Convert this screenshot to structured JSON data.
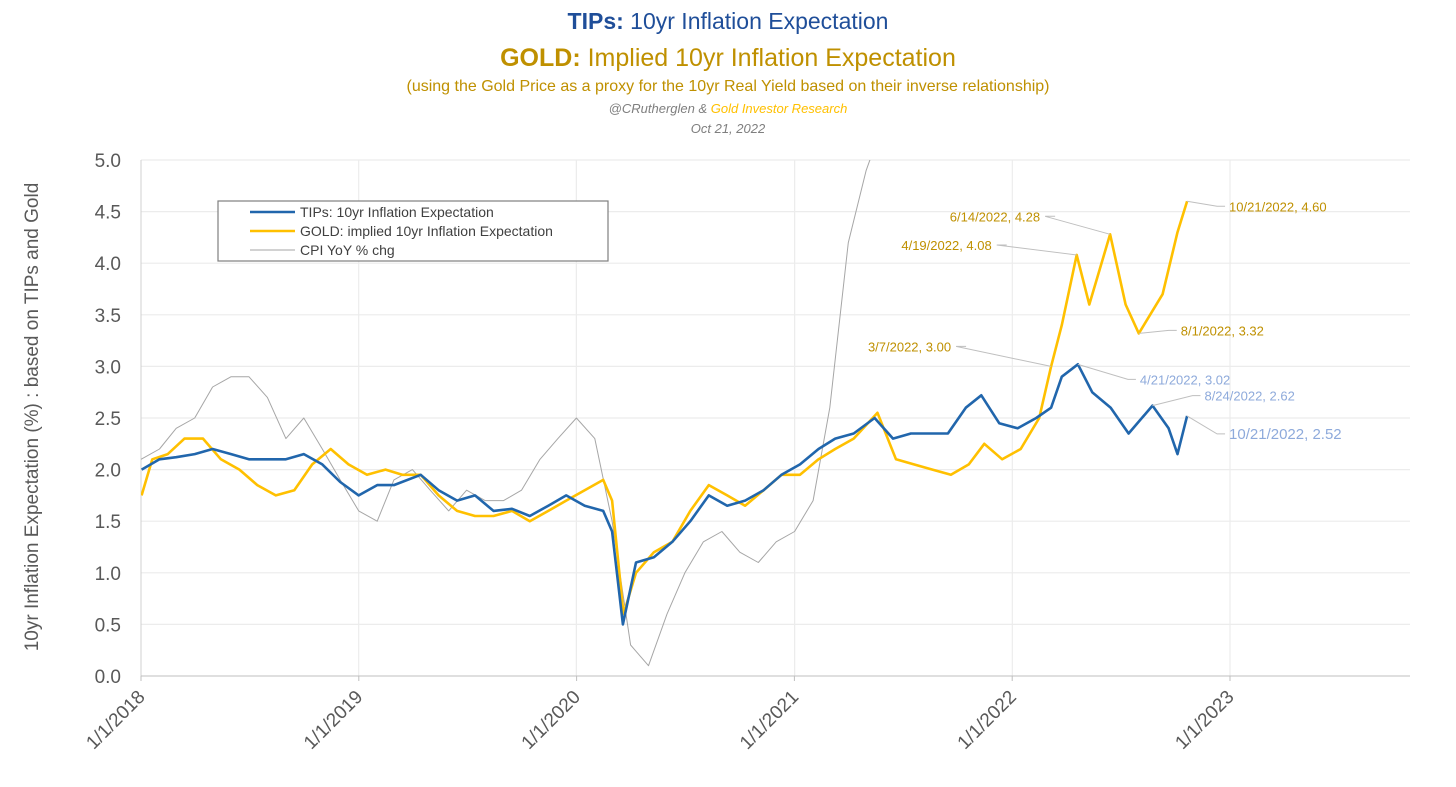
{
  "header": {
    "title1_bold": "TIPs:",
    "title1_rest": " 10yr Inflation Expectation",
    "title2_bold": "GOLD:",
    "title2_rest": " Implied 10yr Inflation Expectation",
    "subtitle": "(using the Gold Price as a proxy for the 10yr Real Yield based on their inverse relationship)",
    "credit_author": "@CRutherglen & ",
    "credit_org": "Gold Investor Research",
    "date": "Oct 21, 2022"
  },
  "colors": {
    "tips": "#2166ac",
    "gold": "#ffc000",
    "cpi": "#a6a6a6",
    "gold_text": "#bf9000",
    "tips_label": "#8eaadb",
    "title_blue": "#1f4e99"
  },
  "chart_data": {
    "type": "line",
    "ylabel": "10yr Inflation Expectation (%) : based on TIPs and Gold",
    "xlabel": "",
    "ylim": [
      0,
      5
    ],
    "yticks": [
      "0.0",
      "0.5",
      "1.0",
      "1.5",
      "2.0",
      "2.5",
      "3.0",
      "3.5",
      "4.0",
      "4.5",
      "5.0"
    ],
    "xlim": [
      "2018-01-01",
      "2023-10-01"
    ],
    "xticks": [
      {
        "date": "2018-01-01",
        "label": "1/1/2018"
      },
      {
        "date": "2019-01-01",
        "label": "1/1/2019"
      },
      {
        "date": "2020-01-01",
        "label": "1/1/2020"
      },
      {
        "date": "2021-01-01",
        "label": "1/1/2021"
      },
      {
        "date": "2022-01-01",
        "label": "1/1/2022"
      },
      {
        "date": "2023-01-01",
        "label": "1/1/2023"
      }
    ],
    "grid": true,
    "legend_position": "top-left",
    "series": [
      {
        "key": "tips",
        "name": "TIPs: 10yr Inflation Expectation",
        "points": [
          [
            "2018-01-02",
            2.0
          ],
          [
            "2018-02-01",
            2.1
          ],
          [
            "2018-03-01",
            2.12
          ],
          [
            "2018-04-01",
            2.15
          ],
          [
            "2018-05-01",
            2.2
          ],
          [
            "2018-06-01",
            2.15
          ],
          [
            "2018-07-01",
            2.1
          ],
          [
            "2018-08-01",
            2.1
          ],
          [
            "2018-09-01",
            2.1
          ],
          [
            "2018-10-01",
            2.15
          ],
          [
            "2018-11-01",
            2.05
          ],
          [
            "2018-12-01",
            1.88
          ],
          [
            "2019-01-01",
            1.75
          ],
          [
            "2019-02-01",
            1.85
          ],
          [
            "2019-03-01",
            1.85
          ],
          [
            "2019-04-15",
            1.95
          ],
          [
            "2019-05-15",
            1.8
          ],
          [
            "2019-06-15",
            1.7
          ],
          [
            "2019-07-15",
            1.75
          ],
          [
            "2019-08-15",
            1.6
          ],
          [
            "2019-09-15",
            1.62
          ],
          [
            "2019-10-15",
            1.55
          ],
          [
            "2019-11-15",
            1.65
          ],
          [
            "2019-12-15",
            1.75
          ],
          [
            "2020-01-15",
            1.65
          ],
          [
            "2020-02-15",
            1.6
          ],
          [
            "2020-03-01",
            1.4
          ],
          [
            "2020-03-19",
            0.5
          ],
          [
            "2020-04-10",
            1.1
          ],
          [
            "2020-05-10",
            1.15
          ],
          [
            "2020-06-10",
            1.3
          ],
          [
            "2020-07-10",
            1.5
          ],
          [
            "2020-08-10",
            1.75
          ],
          [
            "2020-09-10",
            1.65
          ],
          [
            "2020-10-10",
            1.7
          ],
          [
            "2020-11-10",
            1.8
          ],
          [
            "2020-12-10",
            1.95
          ],
          [
            "2021-01-10",
            2.05
          ],
          [
            "2021-02-10",
            2.2
          ],
          [
            "2021-03-10",
            2.3
          ],
          [
            "2021-04-10",
            2.35
          ],
          [
            "2021-05-15",
            2.5
          ],
          [
            "2021-06-15",
            2.3
          ],
          [
            "2021-07-15",
            2.35
          ],
          [
            "2021-08-15",
            2.35
          ],
          [
            "2021-09-15",
            2.35
          ],
          [
            "2021-10-15",
            2.6
          ],
          [
            "2021-11-10",
            2.72
          ],
          [
            "2021-12-10",
            2.45
          ],
          [
            "2022-01-10",
            2.4
          ],
          [
            "2022-02-10",
            2.5
          ],
          [
            "2022-03-07",
            2.6
          ],
          [
            "2022-03-25",
            2.9
          ],
          [
            "2022-04-21",
            3.02
          ],
          [
            "2022-05-15",
            2.75
          ],
          [
            "2022-06-15",
            2.6
          ],
          [
            "2022-07-15",
            2.35
          ],
          [
            "2022-08-24",
            2.62
          ],
          [
            "2022-09-20",
            2.4
          ],
          [
            "2022-10-05",
            2.15
          ],
          [
            "2022-10-21",
            2.52
          ]
        ]
      },
      {
        "key": "gold",
        "name": "GOLD: implied 10yr Inflation Expectation",
        "points": [
          [
            "2018-01-02",
            1.75
          ],
          [
            "2018-01-20",
            2.1
          ],
          [
            "2018-02-15",
            2.15
          ],
          [
            "2018-03-15",
            2.3
          ],
          [
            "2018-04-15",
            2.3
          ],
          [
            "2018-05-15",
            2.1
          ],
          [
            "2018-06-15",
            2.0
          ],
          [
            "2018-07-15",
            1.85
          ],
          [
            "2018-08-15",
            1.75
          ],
          [
            "2018-09-15",
            1.8
          ],
          [
            "2018-10-15",
            2.05
          ],
          [
            "2018-11-15",
            2.2
          ],
          [
            "2018-12-15",
            2.05
          ],
          [
            "2019-01-15",
            1.95
          ],
          [
            "2019-02-15",
            2.0
          ],
          [
            "2019-03-15",
            1.95
          ],
          [
            "2019-04-15",
            1.95
          ],
          [
            "2019-05-15",
            1.75
          ],
          [
            "2019-06-15",
            1.6
          ],
          [
            "2019-07-15",
            1.55
          ],
          [
            "2019-08-15",
            1.55
          ],
          [
            "2019-09-15",
            1.6
          ],
          [
            "2019-10-15",
            1.5
          ],
          [
            "2019-11-15",
            1.6
          ],
          [
            "2019-12-15",
            1.7
          ],
          [
            "2020-01-15",
            1.8
          ],
          [
            "2020-02-15",
            1.9
          ],
          [
            "2020-03-01",
            1.7
          ],
          [
            "2020-03-20",
            0.6
          ],
          [
            "2020-04-10",
            1.0
          ],
          [
            "2020-05-10",
            1.2
          ],
          [
            "2020-06-10",
            1.3
          ],
          [
            "2020-07-10",
            1.6
          ],
          [
            "2020-08-10",
            1.85
          ],
          [
            "2020-09-10",
            1.75
          ],
          [
            "2020-10-10",
            1.65
          ],
          [
            "2020-11-10",
            1.8
          ],
          [
            "2020-12-10",
            1.95
          ],
          [
            "2021-01-10",
            1.95
          ],
          [
            "2021-02-10",
            2.1
          ],
          [
            "2021-03-10",
            2.2
          ],
          [
            "2021-04-10",
            2.3
          ],
          [
            "2021-05-20",
            2.55
          ],
          [
            "2021-06-20",
            2.1
          ],
          [
            "2021-07-20",
            2.05
          ],
          [
            "2021-08-20",
            2.0
          ],
          [
            "2021-09-20",
            1.95
          ],
          [
            "2021-10-20",
            2.05
          ],
          [
            "2021-11-15",
            2.25
          ],
          [
            "2021-12-15",
            2.1
          ],
          [
            "2022-01-15",
            2.2
          ],
          [
            "2022-02-15",
            2.5
          ],
          [
            "2022-03-07",
            3.0
          ],
          [
            "2022-03-25",
            3.4
          ],
          [
            "2022-04-19",
            4.08
          ],
          [
            "2022-05-10",
            3.6
          ],
          [
            "2022-06-14",
            4.28
          ],
          [
            "2022-07-10",
            3.6
          ],
          [
            "2022-08-01",
            3.32
          ],
          [
            "2022-09-10",
            3.7
          ],
          [
            "2022-10-05",
            4.3
          ],
          [
            "2022-10-21",
            4.6
          ]
        ]
      },
      {
        "key": "cpi",
        "name": "CPI YoY % chg",
        "points": [
          [
            "2018-01-01",
            2.1
          ],
          [
            "2018-02-01",
            2.2
          ],
          [
            "2018-03-01",
            2.4
          ],
          [
            "2018-04-01",
            2.5
          ],
          [
            "2018-05-01",
            2.8
          ],
          [
            "2018-06-01",
            2.9
          ],
          [
            "2018-07-01",
            2.9
          ],
          [
            "2018-08-01",
            2.7
          ],
          [
            "2018-09-01",
            2.3
          ],
          [
            "2018-10-01",
            2.5
          ],
          [
            "2018-11-01",
            2.2
          ],
          [
            "2018-12-01",
            1.9
          ],
          [
            "2019-01-01",
            1.6
          ],
          [
            "2019-02-01",
            1.5
          ],
          [
            "2019-03-01",
            1.9
          ],
          [
            "2019-04-01",
            2.0
          ],
          [
            "2019-05-01",
            1.8
          ],
          [
            "2019-06-01",
            1.6
          ],
          [
            "2019-07-01",
            1.8
          ],
          [
            "2019-08-01",
            1.7
          ],
          [
            "2019-09-01",
            1.7
          ],
          [
            "2019-10-01",
            1.8
          ],
          [
            "2019-11-01",
            2.1
          ],
          [
            "2019-12-01",
            2.3
          ],
          [
            "2020-01-01",
            2.5
          ],
          [
            "2020-02-01",
            2.3
          ],
          [
            "2020-03-01",
            1.5
          ],
          [
            "2020-04-01",
            0.3
          ],
          [
            "2020-05-01",
            0.1
          ],
          [
            "2020-06-01",
            0.6
          ],
          [
            "2020-07-01",
            1.0
          ],
          [
            "2020-08-01",
            1.3
          ],
          [
            "2020-09-01",
            1.4
          ],
          [
            "2020-10-01",
            1.2
          ],
          [
            "2020-11-01",
            1.1
          ],
          [
            "2020-12-01",
            1.3
          ],
          [
            "2021-01-01",
            1.4
          ],
          [
            "2021-02-01",
            1.7
          ],
          [
            "2021-03-01",
            2.6
          ],
          [
            "2021-04-01",
            4.2
          ],
          [
            "2021-05-01",
            4.9
          ],
          [
            "2021-06-01",
            5.4
          ]
        ]
      }
    ],
    "annotations": [
      {
        "series": "gold",
        "date": "2022-10-21",
        "value": 4.6,
        "label": "10/21/2022, 4.60"
      },
      {
        "series": "gold",
        "date": "2022-06-14",
        "value": 4.28,
        "label": "6/14/2022, 4.28"
      },
      {
        "series": "gold",
        "date": "2022-04-19",
        "value": 4.08,
        "label": "4/19/2022, 4.08"
      },
      {
        "series": "gold",
        "date": "2022-08-01",
        "value": 3.32,
        "label": "8/1/2022, 3.32"
      },
      {
        "series": "gold",
        "date": "2022-03-07",
        "value": 3.0,
        "label": "3/7/2022, 3.00"
      },
      {
        "series": "tips",
        "date": "2022-04-21",
        "value": 3.02,
        "label": "4/21/2022, 3.02"
      },
      {
        "series": "tips",
        "date": "2022-08-24",
        "value": 2.62,
        "label": "8/24/2022, 2.62"
      },
      {
        "series": "tips",
        "date": "2022-10-21",
        "value": 2.52,
        "label": "10/21/2022, 2.52"
      }
    ]
  }
}
